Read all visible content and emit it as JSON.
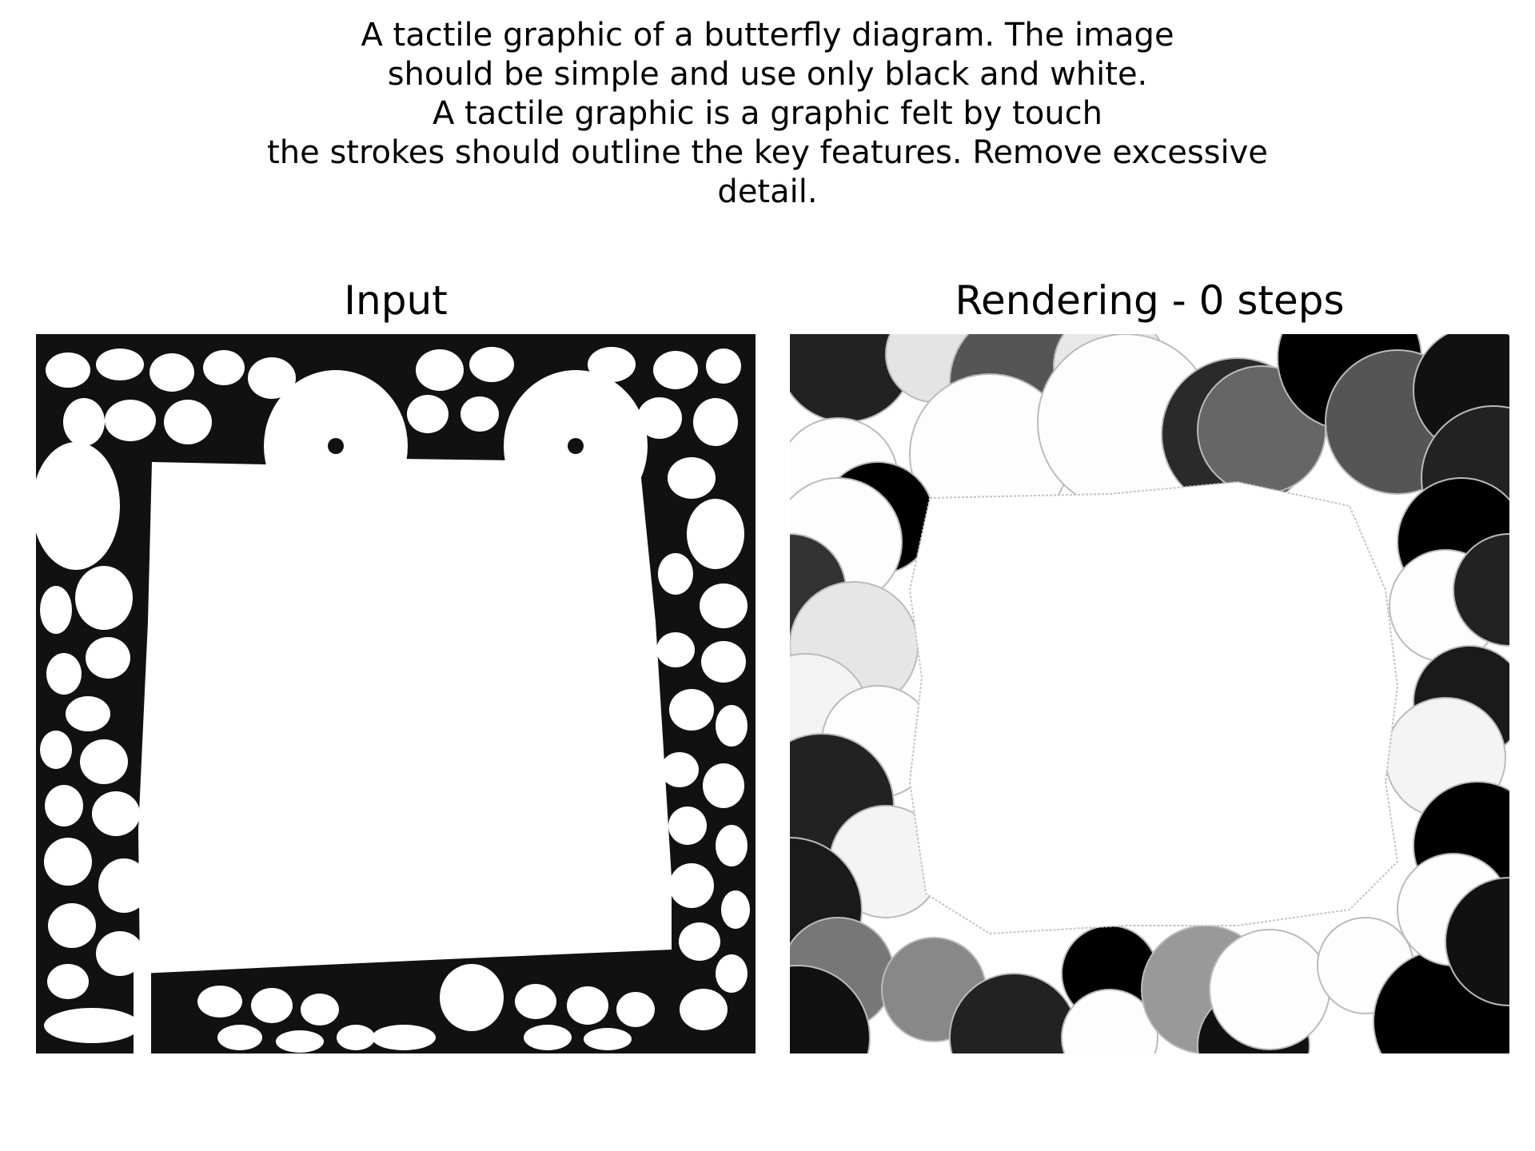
{
  "prompt": {
    "lines": [
      "A tactile graphic of a butterfly diagram. The image",
      "should be simple and use only black and white.",
      "A tactile graphic is a graphic felt by touch",
      "the strokes should outline the key features. Remove excessive",
      "detail."
    ]
  },
  "panels": {
    "input_title": "Input",
    "rendering_title": "Rendering - 0 steps"
  },
  "colors": {
    "background": "#ffffff",
    "ink": "#000000"
  }
}
